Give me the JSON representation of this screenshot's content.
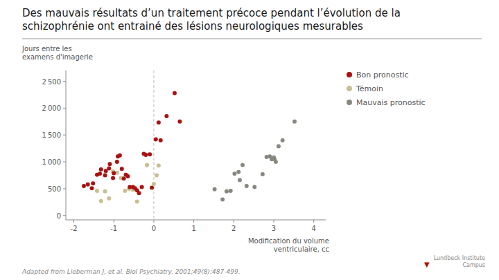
{
  "chart_data": {
    "type": "scatter",
    "title": "Des mauvais résultats d’un traitement précoce pendant l’évolution de la\nschizophrénie ont entrainé des lésions neurologiques mesurables",
    "y_label": "Jours entre les\nexamens d'imagerie",
    "x_label": "Modification du volume\nventriculaire, cc",
    "footnote": "Adapted from Lieberman J, et al. Biol Psychiatry. 2001;49(8):487-499.",
    "logo": "Lundbeck Institute\nCampus",
    "logo_mark": "▼",
    "xlim": [
      -2.2,
      4.3
    ],
    "ylim": [
      -80,
      2700
    ],
    "xticks": [
      -2,
      -1,
      0,
      1,
      2,
      3,
      4
    ],
    "yticks": [
      0,
      500,
      {
        "value": 1000,
        "label": "1 000"
      },
      {
        "value": 1500,
        "label": "1 500"
      },
      {
        "value": 2000,
        "label": "2 000"
      },
      {
        "value": 2500,
        "label": "2 500"
      }
    ],
    "vlines": [
      0
    ],
    "grid": false,
    "legend": "right",
    "marker": "circle",
    "series": [
      {
        "name": "Bon pronostic",
        "color": "#aa1111",
        "x": [
          -1.75,
          -1.65,
          -1.55,
          -1.52,
          -1.42,
          -1.35,
          -1.32,
          -1.22,
          -1.2,
          -1.12,
          -1.1,
          -1.02,
          -1.0,
          -0.92,
          -0.9,
          -0.85,
          -0.8,
          -0.75,
          -0.7,
          -0.65,
          -0.6,
          -0.52,
          -0.47,
          -0.42,
          -0.37,
          -0.3,
          -0.25,
          -0.2,
          -0.1,
          -0.05,
          0.05,
          0.12,
          0.17,
          0.32,
          0.52,
          0.65
        ],
        "values": [
          550,
          580,
          510,
          600,
          760,
          780,
          860,
          750,
          830,
          880,
          960,
          700,
          790,
          1000,
          1100,
          1120,
          870,
          690,
          760,
          730,
          530,
          530,
          510,
          470,
          420,
          530,
          1150,
          1130,
          1140,
          520,
          1420,
          1730,
          1400,
          1850,
          2280,
          1750
        ]
      },
      {
        "name": "Témoin",
        "color": "#c8bf90",
        "x": [
          -1.42,
          -1.32,
          -1.22,
          -1.12,
          -1.02,
          -0.92,
          -0.82,
          -0.72,
          -0.62,
          -0.52,
          -0.42,
          -0.17,
          0.0,
          0.07,
          0.12
        ],
        "values": [
          460,
          270,
          450,
          320,
          820,
          800,
          700,
          460,
          500,
          480,
          260,
          940,
          590,
          750,
          930
        ]
      },
      {
        "name": "Mauvais pronostic",
        "color": "#888880",
        "x": [
          1.52,
          1.72,
          1.82,
          1.92,
          2.02,
          2.12,
          2.15,
          2.22,
          2.32,
          2.52,
          2.72,
          2.82,
          2.9,
          2.95,
          3.0,
          3.02,
          3.05,
          3.12,
          3.22,
          3.52
        ],
        "values": [
          490,
          300,
          450,
          460,
          780,
          810,
          660,
          940,
          550,
          530,
          770,
          1090,
          1100,
          1050,
          1080,
          1050,
          1000,
          1290,
          1400,
          1750
        ]
      }
    ]
  }
}
